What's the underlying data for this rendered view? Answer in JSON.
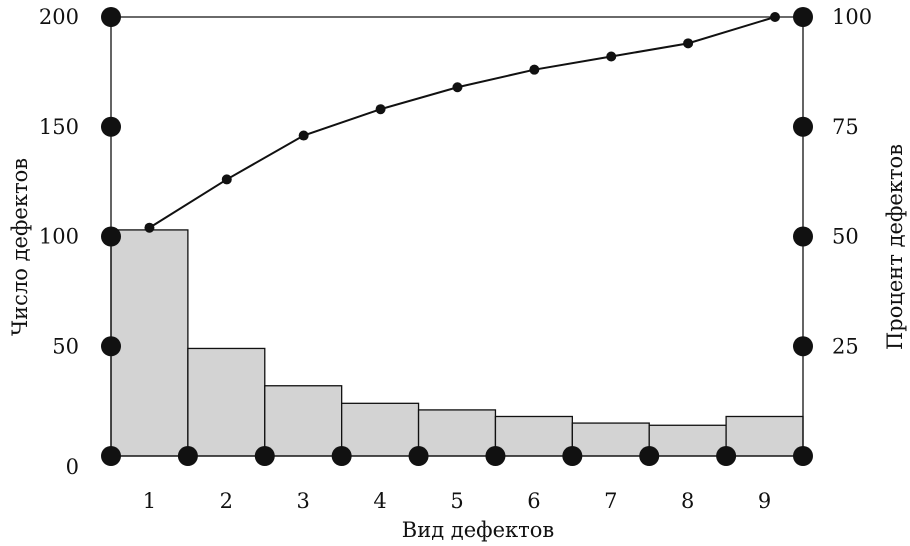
{
  "chart_data": {
    "type": "bar",
    "categories": [
      "1",
      "2",
      "3",
      "4",
      "5",
      "6",
      "7",
      "8",
      "9"
    ],
    "series": [
      {
        "type": "bar",
        "axis": "left",
        "values": [
          103,
          49,
          32,
          24,
          21,
          18,
          15,
          14,
          18
        ]
      },
      {
        "type": "line",
        "axis": "right",
        "values": [
          52,
          63,
          73,
          79,
          84,
          88,
          91,
          94,
          100
        ]
      }
    ],
    "xlabel": "Вид дефектов",
    "ylabel": "Число дефектов",
    "y2label": "Процент дефектов",
    "ylim": [
      0,
      200
    ],
    "y2lim": [
      0,
      100
    ],
    "yticks": [
      "0",
      "50",
      "100",
      "150",
      "200"
    ],
    "y2ticks": [
      "25",
      "50",
      "75",
      "100"
    ],
    "grid": false,
    "colors": {
      "bar_fill": "#d3d3d3",
      "stroke": "#111111"
    }
  }
}
